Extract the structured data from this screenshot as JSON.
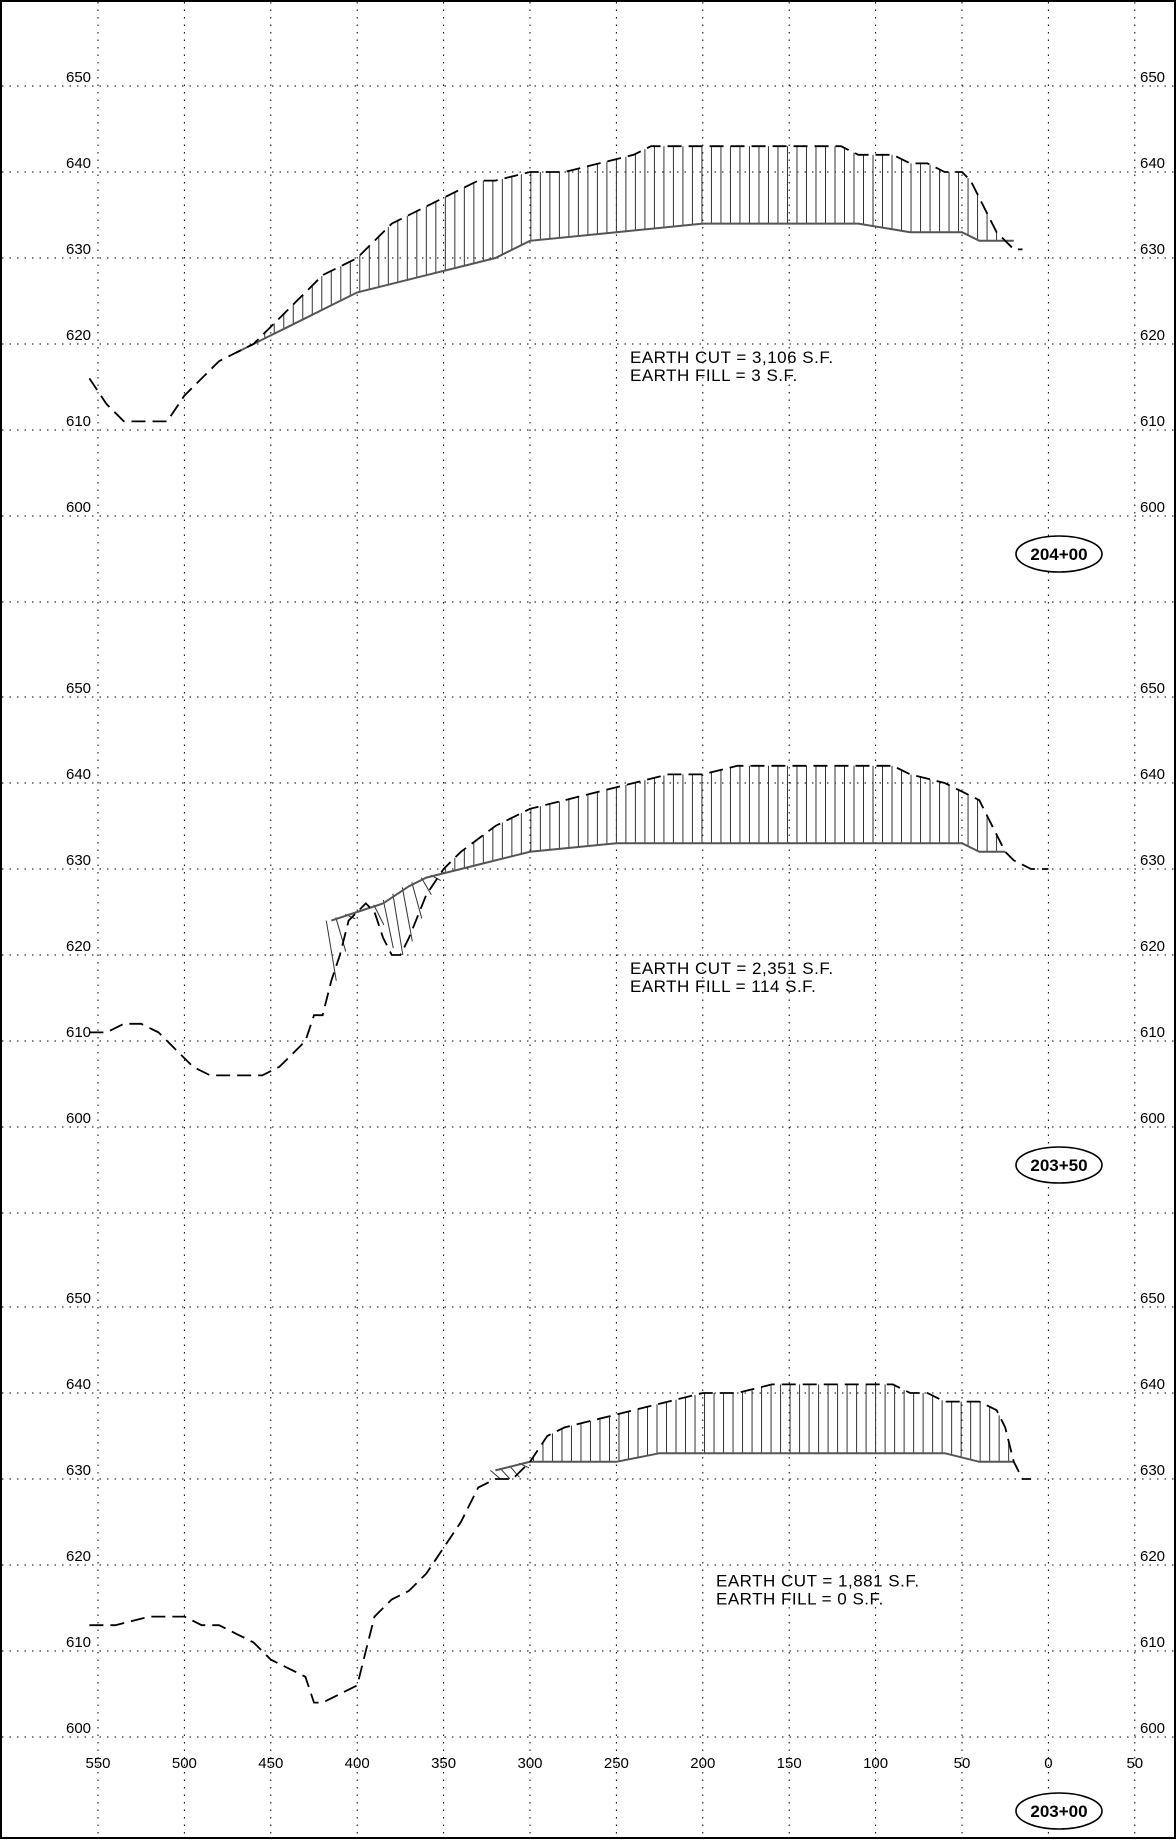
{
  "sheet": {
    "grid_x_labels": [
      "550",
      "500",
      "450",
      "400",
      "350",
      "300",
      "250",
      "200",
      "150",
      "100",
      "50",
      "0",
      "50"
    ],
    "grid_x_values": [
      550,
      500,
      450,
      400,
      350,
      300,
      250,
      200,
      150,
      100,
      50,
      0,
      -50
    ],
    "elevation_labels": [
      "650",
      "640",
      "630",
      "620",
      "610",
      "600"
    ]
  },
  "chart_data": [
    {
      "type": "line",
      "station": "204+00",
      "ylim": [
        600,
        650
      ],
      "x_axis": "offset",
      "notes": [
        "EARTH CUT = 3,106 S.F.",
        "EARTH FILL = 3 S.F."
      ],
      "series": [
        {
          "role": "existing-ground",
          "x": [
            555,
            545,
            535,
            520,
            510,
            500,
            490,
            480,
            470,
            460,
            450,
            440,
            430,
            420,
            410,
            400,
            390,
            380,
            370,
            360,
            350,
            340,
            330,
            320,
            300,
            280,
            260,
            240,
            230,
            220,
            210,
            200,
            190,
            180,
            170,
            160,
            150,
            140,
            130,
            120,
            110,
            100,
            90,
            80,
            70,
            60,
            50,
            45,
            40,
            35,
            30,
            25,
            20,
            15
          ],
          "y": [
            616,
            613,
            611,
            611,
            611,
            614,
            616,
            618,
            619,
            620,
            622,
            624,
            626,
            628,
            629,
            630,
            632,
            634,
            635,
            636,
            637,
            638,
            639,
            639,
            640,
            640,
            641,
            642,
            643,
            643,
            643,
            643,
            643,
            643,
            643,
            643,
            643,
            643,
            643,
            643,
            642,
            642,
            642,
            641,
            641,
            640,
            640,
            639,
            637,
            635,
            633,
            632,
            631,
            631
          ]
        },
        {
          "role": "proposed-grade",
          "x": [
            470,
            460,
            450,
            440,
            430,
            420,
            410,
            400,
            380,
            360,
            340,
            320,
            300,
            250,
            200,
            180,
            150,
            110,
            80,
            50,
            40,
            30,
            20
          ],
          "y": [
            619,
            620,
            621,
            622,
            623,
            624,
            625,
            626,
            627,
            628,
            629,
            630,
            632,
            633,
            634,
            634,
            634,
            634,
            633,
            633,
            632,
            632,
            632
          ]
        }
      ]
    },
    {
      "type": "line",
      "station": "203+50",
      "ylim": [
        600,
        650
      ],
      "x_axis": "offset",
      "notes": [
        "EARTH CUT = 2,351 S.F.",
        "EARTH FILL = 114 S.F."
      ],
      "series": [
        {
          "role": "existing-ground",
          "x": [
            555,
            545,
            535,
            525,
            515,
            505,
            495,
            485,
            475,
            465,
            455,
            445,
            440,
            430,
            425,
            420,
            415,
            410,
            405,
            400,
            395,
            390,
            385,
            380,
            375,
            370,
            360,
            350,
            340,
            320,
            300,
            280,
            260,
            240,
            220,
            200,
            180,
            160,
            140,
            120,
            100,
            90,
            80,
            60,
            50,
            40,
            35,
            30,
            25,
            20,
            10,
            0
          ],
          "y": [
            611,
            611,
            612,
            612,
            611,
            609,
            607,
            606,
            606,
            606,
            606,
            607,
            608,
            610,
            613,
            613,
            617,
            620,
            624,
            625,
            626,
            625,
            622,
            620,
            620,
            622,
            627,
            630,
            632,
            635,
            637,
            638,
            639,
            640,
            641,
            641,
            642,
            642,
            642,
            642,
            642,
            642,
            641,
            640,
            639,
            638,
            636,
            634,
            632,
            631,
            630,
            630
          ]
        },
        {
          "role": "proposed-grade",
          "x": [
            415,
            400,
            385,
            370,
            360,
            340,
            320,
            300,
            250,
            200,
            150,
            100,
            60,
            50,
            40,
            30,
            25
          ],
          "y": [
            624,
            625,
            626,
            628,
            629,
            630,
            631,
            632,
            633,
            633,
            633,
            633,
            633,
            633,
            632,
            632,
            632
          ]
        }
      ]
    },
    {
      "type": "line",
      "station": "203+00",
      "ylim": [
        600,
        650
      ],
      "x_axis": "offset",
      "notes": [
        "EARTH CUT = 1,881 S.F.",
        "EARTH FILL = 0 S.F."
      ],
      "series": [
        {
          "role": "existing-ground",
          "x": [
            555,
            540,
            520,
            500,
            490,
            480,
            470,
            460,
            450,
            440,
            430,
            425,
            420,
            410,
            400,
            395,
            390,
            380,
            370,
            360,
            350,
            340,
            330,
            320,
            310,
            300,
            290,
            280,
            260,
            240,
            220,
            200,
            180,
            160,
            140,
            120,
            100,
            90,
            80,
            70,
            60,
            50,
            40,
            30,
            25,
            20,
            15,
            10
          ],
          "y": [
            613,
            613,
            614,
            614,
            613,
            613,
            612,
            611,
            609,
            608,
            607,
            604,
            604,
            605,
            606,
            610,
            614,
            616,
            617,
            619,
            622,
            625,
            629,
            630,
            630,
            632,
            635,
            636,
            637,
            638,
            639,
            640,
            640,
            641,
            641,
            641,
            641,
            641,
            640,
            640,
            639,
            639,
            639,
            638,
            636,
            632,
            630,
            630
          ]
        },
        {
          "role": "proposed-grade",
          "x": [
            320,
            300,
            280,
            250,
            225,
            200,
            150,
            100,
            80,
            60,
            40,
            30,
            20
          ],
          "y": [
            631,
            632,
            632,
            632,
            633,
            633,
            633,
            633,
            633,
            633,
            632,
            632,
            632
          ]
        }
      ]
    }
  ]
}
